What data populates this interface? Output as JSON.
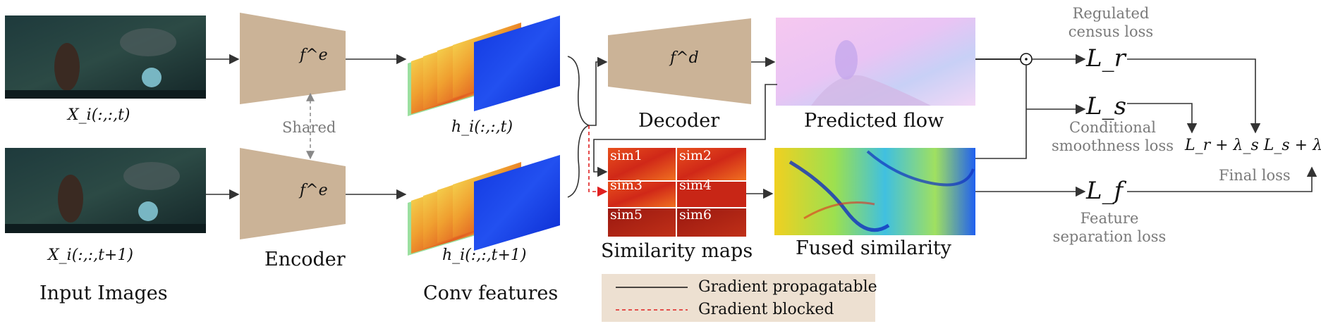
{
  "inputs": {
    "frame_t_label": "X_i(:,:,t)",
    "frame_t1_label": "X_i(:,:,t+1)",
    "section_label": "Input Images"
  },
  "encoder": {
    "top_symbol": "f^e",
    "bottom_symbol": "f^e",
    "shared_label": "Shared",
    "section_label": "Encoder"
  },
  "features": {
    "top_label": "h_i(:,:,t)",
    "bottom_label": "h_i(:,:,t+1)",
    "section_label": "Conv features"
  },
  "decoder": {
    "symbol": "f^d",
    "section_label": "Decoder"
  },
  "flow": {
    "section_label": "Predicted flow"
  },
  "similarity": {
    "tiles": [
      "sim1",
      "sim2",
      "sim3",
      "sim4",
      "sim5",
      "sim6"
    ],
    "section_label": "Similarity maps"
  },
  "fused": {
    "section_label": "Fused similarity"
  },
  "losses": {
    "census": {
      "symbol": "L_r",
      "caption_line1": "Regulated",
      "caption_line2": "census loss"
    },
    "smooth": {
      "symbol": "L_s",
      "caption_line1": "Conditional",
      "caption_line2": "smoothness loss"
    },
    "feature": {
      "symbol": "L_f",
      "caption_line1": "Feature",
      "caption_line2": "separation loss"
    },
    "final": {
      "formula": "L_r + λ_s L_s + λ_f L_f",
      "caption": "Final loss"
    }
  },
  "legend": {
    "solid_label": "Gradient propagatable",
    "dashed_label": "Gradient blocked",
    "solid_color": "#111111",
    "dashed_color": "#e02020"
  },
  "colors": {
    "module_fill": "#cbb397",
    "legend_fill": "#ede0d1",
    "caption_gray": "#7a7a7a"
  }
}
